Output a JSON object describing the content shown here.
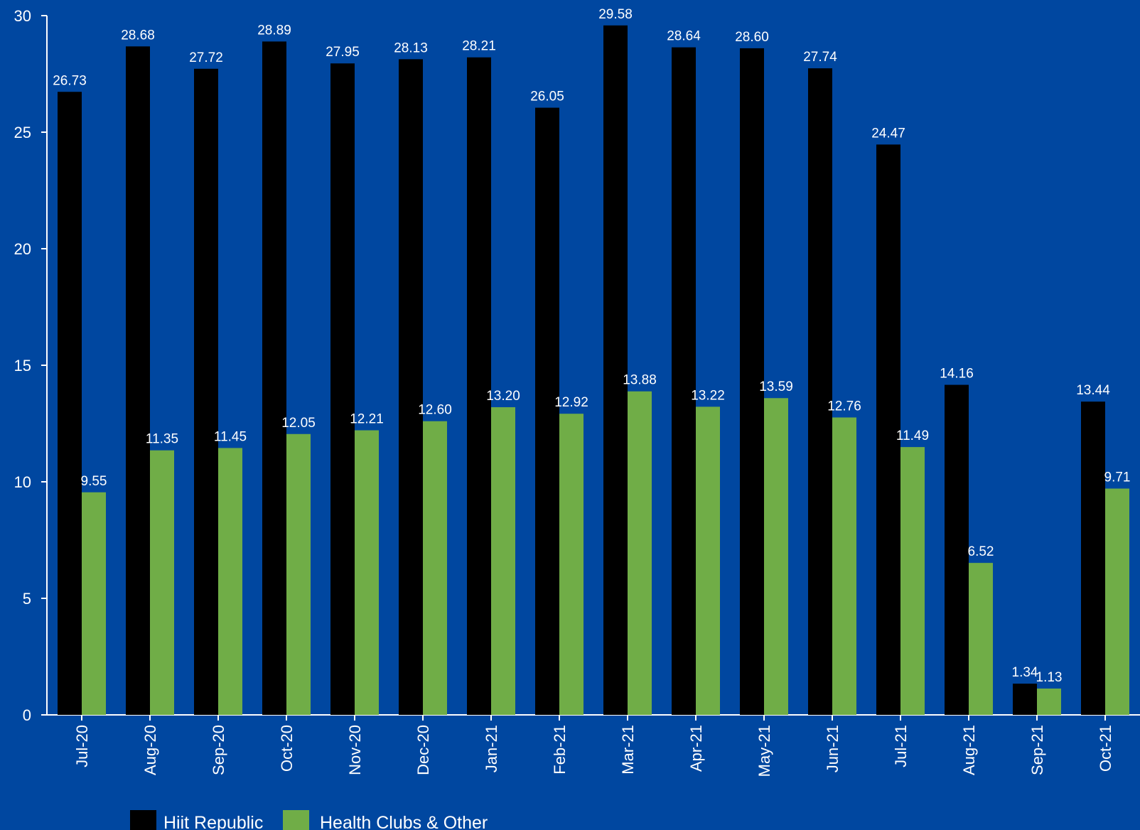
{
  "chart_data": {
    "type": "bar",
    "categories": [
      "Jul-20",
      "Aug-20",
      "Sep-20",
      "Oct-20",
      "Nov-20",
      "Dec-20",
      "Jan-21",
      "Feb-21",
      "Mar-21",
      "Apr-21",
      "May-21",
      "Jun-21",
      "Jul-21",
      "Aug-21",
      "Sep-21",
      "Oct-21"
    ],
    "series": [
      {
        "name": "Hiit Republic",
        "color": "#000000",
        "values": [
          26.73,
          28.68,
          27.72,
          28.89,
          27.95,
          28.13,
          28.21,
          26.05,
          29.58,
          28.64,
          28.6,
          27.74,
          24.47,
          14.16,
          1.34,
          13.44
        ],
        "labels": [
          "26.73",
          "28.68",
          "27.72",
          "28.89",
          "27.95",
          "28.13",
          "28.21",
          "26.05",
          "29.58",
          "28.64",
          "28.60",
          "27.74",
          "24.47",
          "14.16",
          "1.34",
          "13.44"
        ]
      },
      {
        "name": "Health Clubs & Other",
        "color": "#70AD47",
        "values": [
          9.55,
          11.35,
          11.45,
          12.05,
          12.21,
          12.6,
          13.2,
          12.92,
          13.88,
          13.22,
          13.59,
          12.76,
          11.49,
          6.52,
          1.13,
          9.71
        ],
        "labels": [
          "9.55",
          "11.35",
          "11.45",
          "12.05",
          "12.21",
          "12.60",
          "13.20",
          "12.92",
          "13.88",
          "13.22",
          "13.59",
          "12.76",
          "11.49",
          "6.52",
          "1.13",
          "9.71"
        ]
      }
    ],
    "ylim": [
      0,
      30
    ],
    "yticks": [
      "0",
      "5",
      "10",
      "15",
      "20",
      "25",
      "30"
    ],
    "grid": false,
    "legend_position": "bottom-left",
    "title": "",
    "xlabel": "",
    "ylabel": "",
    "background_color": "#0047A0"
  }
}
